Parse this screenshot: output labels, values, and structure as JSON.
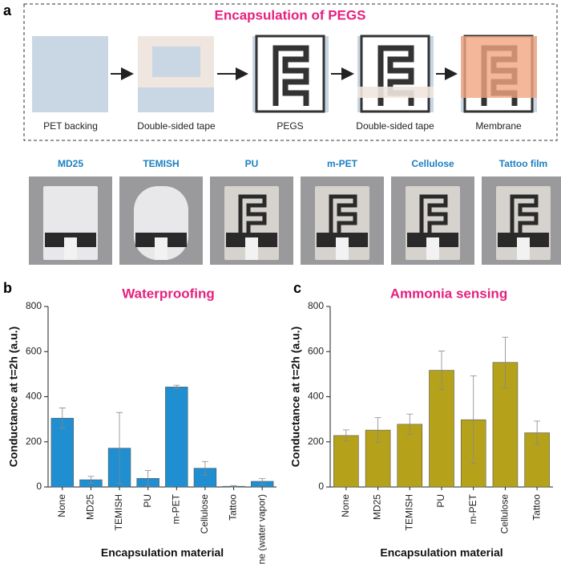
{
  "panel_a": {
    "label": "a",
    "title": "Encapsulation of PEGS",
    "steps": [
      "PET backing",
      "Double-sided tape",
      "PEGS",
      "Double-sided tape",
      "Membrane"
    ],
    "materials": [
      "MD25",
      "TEMISH",
      "PU",
      "m-PET",
      "Cellulose",
      "Tattoo film"
    ]
  },
  "chart_data": [
    {
      "type": "bar",
      "label": "b",
      "title": "Waterproofing",
      "xlabel": "Encapsulation material",
      "ylabel": "Conductance at t=2h (a.u.)",
      "categories": [
        "None",
        "MD25",
        "TEMISH",
        "PU",
        "m-PET",
        "Cellulose",
        "Tattoo",
        "None (water vapor)"
      ],
      "values": [
        305,
        32,
        172,
        38,
        443,
        83,
        3,
        25
      ],
      "errors": [
        45,
        15,
        158,
        35,
        8,
        30,
        3,
        12
      ],
      "color": "#1f8fd1",
      "ylim": [
        0,
        800
      ],
      "yticks": [
        0,
        200,
        400,
        600,
        800
      ]
    },
    {
      "type": "bar",
      "label": "c",
      "title": "Ammonia sensing",
      "xlabel": "Encapsulation material",
      "ylabel": "Conductance at t=2h (a.u.)",
      "categories": [
        "None",
        "MD25",
        "TEMISH",
        "PU",
        "m-PET",
        "Cellulose",
        "Tattoo"
      ],
      "values": [
        228,
        252,
        278,
        517,
        298,
        552,
        240
      ],
      "errors": [
        25,
        55,
        45,
        85,
        195,
        112,
        52
      ],
      "color": "#b5a21a",
      "ylim": [
        0,
        800
      ],
      "yticks": [
        0,
        200,
        400,
        600,
        800
      ]
    }
  ]
}
